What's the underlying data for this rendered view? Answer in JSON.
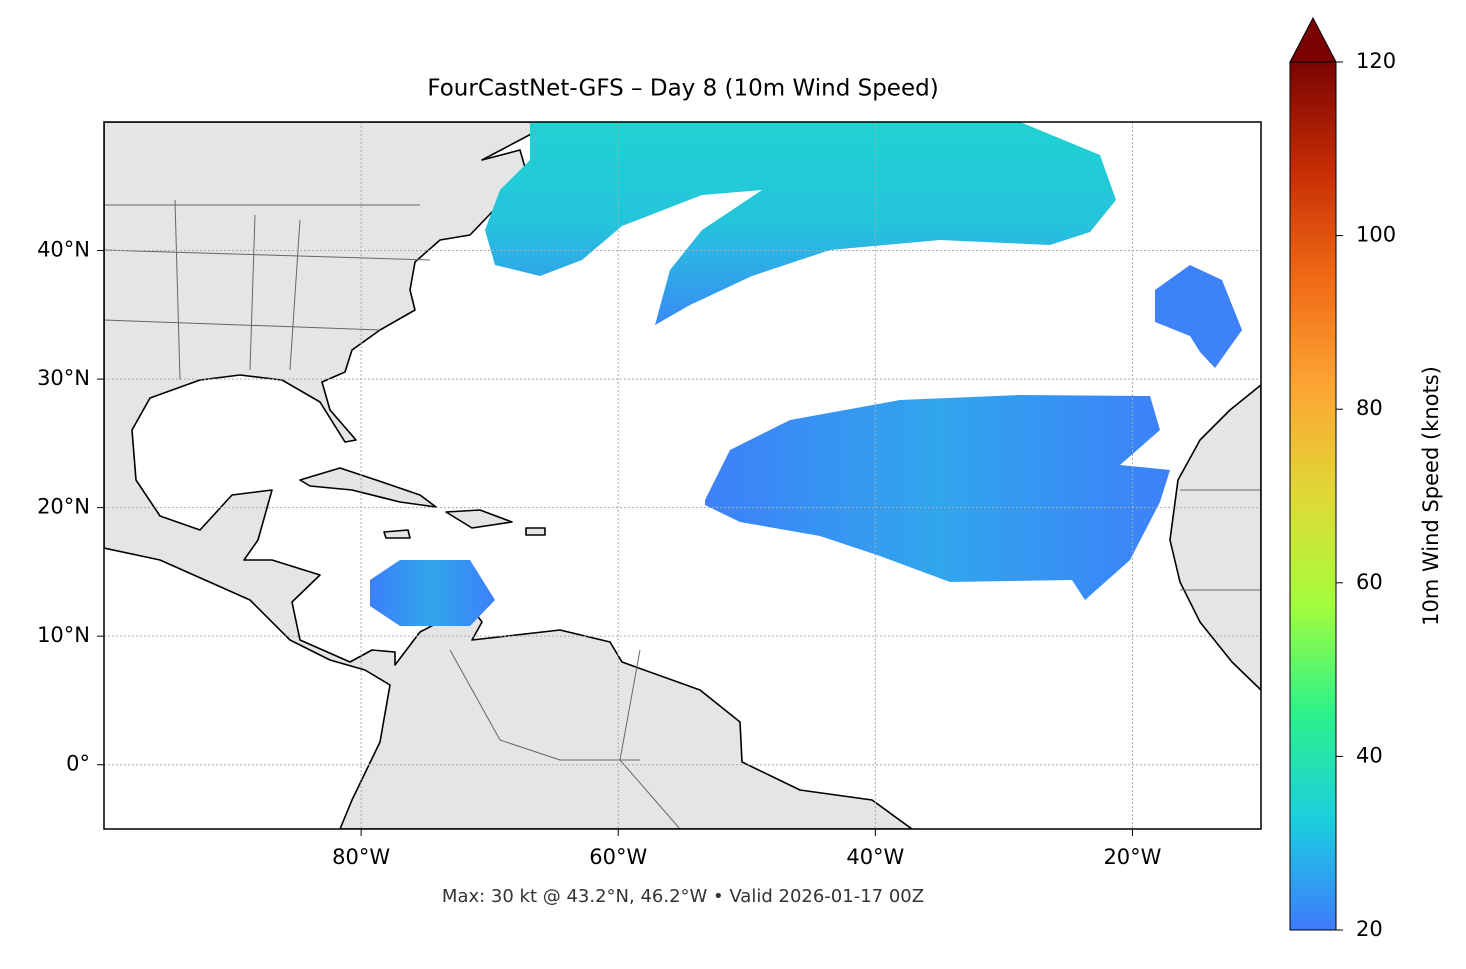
{
  "map": {
    "title": "FourCastNet-GFS – Day 8 (10m Wind Speed)",
    "note": "Max: 30 kt @ 43.2°N, 46.2°W • Valid 2026-01-17 00Z",
    "xlim": [
      -100,
      -10
    ],
    "ylim": [
      -5,
      50
    ],
    "xticks": [
      {
        "value": -80,
        "label": "80°W"
      },
      {
        "value": -60,
        "label": "60°W"
      },
      {
        "value": -40,
        "label": "40°W"
      },
      {
        "value": -20,
        "label": "20°W"
      }
    ],
    "yticks": [
      {
        "value": 0,
        "label": "0°"
      },
      {
        "value": 10,
        "label": "10°N"
      },
      {
        "value": 20,
        "label": "20°N"
      },
      {
        "value": 30,
        "label": "30°N"
      },
      {
        "value": 40,
        "label": "40°N"
      }
    ],
    "grid": true,
    "colorbar": {
      "label": "10m Wind Speed (knots)",
      "lim": [
        20,
        120
      ],
      "ticks": [
        20,
        40,
        60,
        80,
        100,
        120
      ],
      "colors": [
        "#3e7bfa",
        "#1ccee0",
        "#2cf28a",
        "#a3fd3c",
        "#e0d836",
        "#fca634",
        "#f06a16",
        "#c62d04",
        "#7a0403"
      ]
    }
  }
}
